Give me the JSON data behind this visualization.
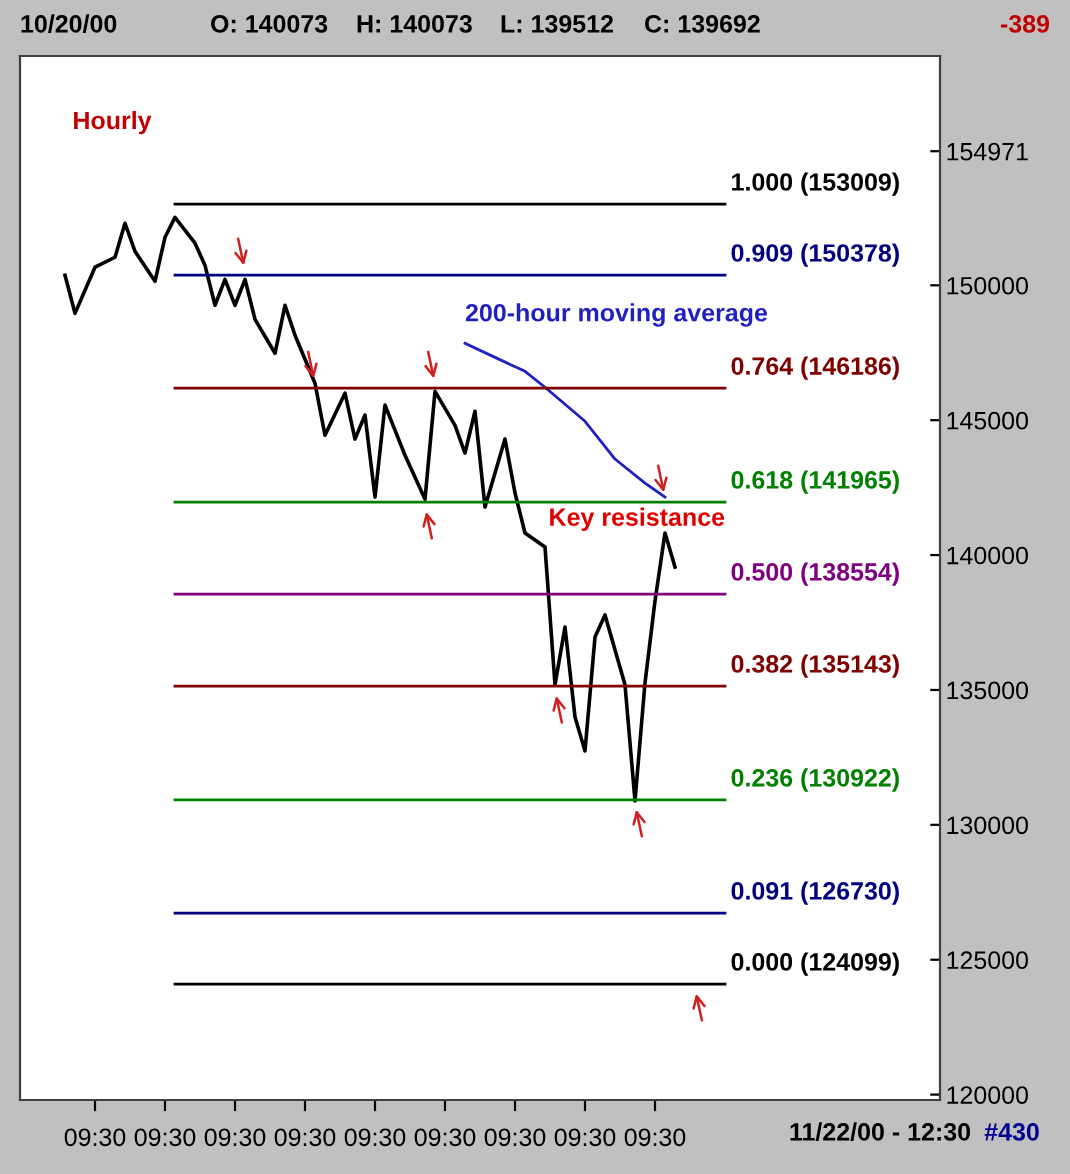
{
  "chart_data": {
    "type": "line",
    "title": "Hourly",
    "annotations": [
      "10/20/00",
      "O: 140073",
      "H: 140073",
      "L: 139512",
      "C: 139692",
      "-389",
      "11/22/00 - 12:30",
      "#430",
      {
        "text": "Key resistance",
        "y": 141965
      }
    ],
    "categories": [
      null,
      null,
      null,
      null,
      null,
      null,
      null,
      "09:30",
      null,
      null,
      null,
      null,
      null,
      null,
      "09:30",
      null,
      null,
      null,
      null,
      null,
      null,
      "09:30",
      null,
      null,
      null,
      null,
      null,
      null,
      "09:30",
      null,
      null,
      null,
      null,
      null,
      null,
      "09:30",
      null,
      null,
      null,
      null,
      null,
      null,
      "09:30",
      null,
      null,
      null,
      null,
      null,
      null,
      "09:30",
      null,
      null,
      null,
      null,
      null,
      null,
      "09:30",
      null,
      null,
      null,
      null,
      null,
      null,
      "09:30",
      null,
      null,
      null,
      null,
      null,
      null,
      null,
      null,
      null,
      null,
      null,
      null,
      null,
      null,
      null,
      null,
      null,
      null,
      null,
      null,
      null,
      null,
      null,
      null,
      null,
      null,
      null,
      null
    ],
    "series": [
      {
        "color": "#000000",
        "values": [
          null,
          null,
          null,
          null,
          150370,
          148960,
          null,
          150670,
          null,
          151040,
          152300,
          151260,
          null,
          150150,
          151780,
          152520,
          null,
          151560,
          150740,
          149260,
          150220,
          149260,
          150220,
          148740,
          null,
          147480,
          149260,
          148150,
          null,
          146370,
          144440,
          null,
          146000,
          144300,
          145190,
          142150,
          145560,
          null,
          143700,
          null,
          142070,
          146070,
          null,
          144810,
          143780,
          145330,
          141780,
          null,
          144300,
          142300,
          140820,
          null,
          140300,
          135190,
          137330,
          134000,
          132740,
          136960,
          137780,
          null,
          135190,
          130890,
          135260,
          138300,
          140820,
          139560,
          null,
          null,
          null,
          null,
          null,
          null,
          null,
          null,
          null,
          null,
          null,
          null,
          null,
          null,
          null,
          null,
          null,
          null,
          null,
          null,
          null,
          null,
          null,
          null,
          null,
          null
        ]
      },
      {
        "name": "200-hour moving average",
        "color": "#2020c0",
        "values": [
          null,
          null,
          null,
          null,
          null,
          null,
          null,
          null,
          null,
          null,
          null,
          null,
          null,
          null,
          null,
          null,
          null,
          null,
          null,
          null,
          null,
          null,
          null,
          null,
          null,
          null,
          null,
          null,
          null,
          null,
          null,
          null,
          null,
          null,
          null,
          null,
          null,
          null,
          null,
          null,
          null,
          null,
          null,
          null,
          147850,
          null,
          null,
          null,
          null,
          null,
          146810,
          null,
          146220,
          null,
          null,
          null,
          144960,
          null,
          null,
          143560,
          null,
          null,
          142670,
          null,
          142150,
          null,
          null,
          null,
          null,
          null,
          null,
          null,
          null,
          null,
          null,
          null,
          null,
          null,
          null,
          null,
          null,
          null,
          null,
          null,
          null,
          null,
          null,
          null,
          null,
          null,
          null,
          null
        ]
      },
      {
        "name": "1.000 (153009)",
        "color": "#000000",
        "values": [
          null,
          null,
          null,
          null,
          null,
          null,
          null,
          null,
          null,
          null,
          null,
          null,
          null,
          null,
          null,
          153009,
          null,
          null,
          null,
          null,
          null,
          null,
          null,
          null,
          null,
          null,
          null,
          null,
          null,
          null,
          null,
          null,
          null,
          null,
          null,
          null,
          null,
          null,
          null,
          null,
          null,
          null,
          null,
          null,
          null,
          null,
          null,
          null,
          null,
          null,
          null,
          null,
          null,
          null,
          null,
          null,
          null,
          null,
          null,
          null,
          null,
          null,
          null,
          null,
          null,
          null,
          null,
          null,
          null,
          null,
          153009,
          null,
          null,
          null,
          null,
          null,
          null,
          null,
          null,
          null,
          null,
          null,
          null,
          null,
          null,
          null,
          null,
          null,
          null,
          null,
          null,
          null
        ]
      },
      {
        "name": "0.909 (150378)",
        "color": "#000080",
        "values": [
          null,
          null,
          null,
          null,
          null,
          null,
          null,
          null,
          null,
          null,
          null,
          null,
          null,
          null,
          null,
          150378,
          null,
          null,
          null,
          null,
          null,
          null,
          null,
          null,
          null,
          null,
          null,
          null,
          null,
          null,
          null,
          null,
          null,
          null,
          null,
          null,
          null,
          null,
          null,
          null,
          null,
          null,
          null,
          null,
          null,
          null,
          null,
          null,
          null,
          null,
          null,
          null,
          null,
          null,
          null,
          null,
          null,
          null,
          null,
          null,
          null,
          null,
          null,
          null,
          null,
          null,
          null,
          null,
          null,
          null,
          150378,
          null,
          null,
          null,
          null,
          null,
          null,
          null,
          null,
          null,
          null,
          null,
          null,
          null,
          null,
          null,
          null,
          null,
          null,
          null,
          null,
          null
        ]
      },
      {
        "name": "0.764 (146186)",
        "color": "#800000",
        "values": [
          null,
          null,
          null,
          null,
          null,
          null,
          null,
          null,
          null,
          null,
          null,
          null,
          null,
          null,
          null,
          146186,
          null,
          null,
          null,
          null,
          null,
          null,
          null,
          null,
          null,
          null,
          null,
          null,
          null,
          null,
          null,
          null,
          null,
          null,
          null,
          null,
          null,
          null,
          null,
          null,
          null,
          null,
          null,
          null,
          null,
          null,
          null,
          null,
          null,
          null,
          null,
          null,
          null,
          null,
          null,
          null,
          null,
          null,
          null,
          null,
          null,
          null,
          null,
          null,
          null,
          null,
          null,
          null,
          null,
          null,
          146186,
          null,
          null,
          null,
          null,
          null,
          null,
          null,
          null,
          null,
          null,
          null,
          null,
          null,
          null,
          null,
          null,
          null,
          null,
          null,
          null,
          null
        ]
      },
      {
        "name": "0.618 (141965)",
        "color": "#008000",
        "values": [
          null,
          null,
          null,
          null,
          null,
          null,
          null,
          null,
          null,
          null,
          null,
          null,
          null,
          null,
          null,
          141965,
          null,
          null,
          null,
          null,
          null,
          null,
          null,
          null,
          null,
          null,
          null,
          null,
          null,
          null,
          null,
          null,
          null,
          null,
          null,
          null,
          null,
          null,
          null,
          null,
          null,
          null,
          null,
          null,
          null,
          null,
          null,
          null,
          null,
          null,
          null,
          null,
          null,
          null,
          null,
          null,
          null,
          null,
          null,
          null,
          null,
          null,
          null,
          null,
          null,
          null,
          null,
          null,
          null,
          null,
          141965,
          null,
          null,
          null,
          null,
          null,
          null,
          null,
          null,
          null,
          null,
          null,
          null,
          null,
          null,
          null,
          null,
          null,
          null,
          null,
          null,
          null
        ]
      },
      {
        "name": "0.500 (138554)",
        "color": "#800080",
        "values": [
          null,
          null,
          null,
          null,
          null,
          null,
          null,
          null,
          null,
          null,
          null,
          null,
          null,
          null,
          null,
          138554,
          null,
          null,
          null,
          null,
          null,
          null,
          null,
          null,
          null,
          null,
          null,
          null,
          null,
          null,
          null,
          null,
          null,
          null,
          null,
          null,
          null,
          null,
          null,
          null,
          null,
          null,
          null,
          null,
          null,
          null,
          null,
          null,
          null,
          null,
          null,
          null,
          null,
          null,
          null,
          null,
          null,
          null,
          null,
          null,
          null,
          null,
          null,
          null,
          null,
          null,
          null,
          null,
          null,
          null,
          138554,
          null,
          null,
          null,
          null,
          null,
          null,
          null,
          null,
          null,
          null,
          null,
          null,
          null,
          null,
          null,
          null,
          null,
          null,
          null,
          null,
          null
        ]
      },
      {
        "name": "0.382 (135143)",
        "color": "#800000",
        "values": [
          null,
          null,
          null,
          null,
          null,
          null,
          null,
          null,
          null,
          null,
          null,
          null,
          null,
          null,
          null,
          135143,
          null,
          null,
          null,
          null,
          null,
          null,
          null,
          null,
          null,
          null,
          null,
          null,
          null,
          null,
          null,
          null,
          null,
          null,
          null,
          null,
          null,
          null,
          null,
          null,
          null,
          null,
          null,
          null,
          null,
          null,
          null,
          null,
          null,
          null,
          null,
          null,
          null,
          null,
          null,
          null,
          null,
          null,
          null,
          null,
          null,
          null,
          null,
          null,
          null,
          null,
          null,
          null,
          null,
          null,
          135143,
          null,
          null,
          null,
          null,
          null,
          null,
          null,
          null,
          null,
          null,
          null,
          null,
          null,
          null,
          null,
          null,
          null,
          null,
          null,
          null,
          null
        ]
      },
      {
        "name": "0.236 (130922)",
        "color": "#008000",
        "values": [
          null,
          null,
          null,
          null,
          null,
          null,
          null,
          null,
          null,
          null,
          null,
          null,
          null,
          null,
          null,
          130922,
          null,
          null,
          null,
          null,
          null,
          null,
          null,
          null,
          null,
          null,
          null,
          null,
          null,
          null,
          null,
          null,
          null,
          null,
          null,
          null,
          null,
          null,
          null,
          null,
          null,
          null,
          null,
          null,
          null,
          null,
          null,
          null,
          null,
          null,
          null,
          null,
          null,
          null,
          null,
          null,
          null,
          null,
          null,
          null,
          null,
          null,
          null,
          null,
          null,
          null,
          null,
          null,
          null,
          null,
          130922,
          null,
          null,
          null,
          null,
          null,
          null,
          null,
          null,
          null,
          null,
          null,
          null,
          null,
          null,
          null,
          null,
          null,
          null,
          null,
          null,
          null
        ]
      },
      {
        "name": "0.091 (126730)",
        "color": "#000080",
        "values": [
          null,
          null,
          null,
          null,
          null,
          null,
          null,
          null,
          null,
          null,
          null,
          null,
          null,
          null,
          null,
          126730,
          null,
          null,
          null,
          null,
          null,
          null,
          null,
          null,
          null,
          null,
          null,
          null,
          null,
          null,
          null,
          null,
          null,
          null,
          null,
          null,
          null,
          null,
          null,
          null,
          null,
          null,
          null,
          null,
          null,
          null,
          null,
          null,
          null,
          null,
          null,
          null,
          null,
          null,
          null,
          null,
          null,
          null,
          null,
          null,
          null,
          null,
          null,
          null,
          null,
          null,
          null,
          null,
          null,
          null,
          126730,
          null,
          null,
          null,
          null,
          null,
          null,
          null,
          null,
          null,
          null,
          null,
          null,
          null,
          null,
          null,
          null,
          null,
          null,
          null,
          null,
          null
        ]
      },
      {
        "name": "0.000 (124099)",
        "color": "#000000",
        "values": [
          null,
          null,
          null,
          null,
          null,
          null,
          null,
          null,
          null,
          null,
          null,
          null,
          null,
          null,
          null,
          124099,
          null,
          null,
          null,
          null,
          null,
          null,
          null,
          null,
          null,
          null,
          null,
          null,
          null,
          null,
          null,
          null,
          null,
          null,
          null,
          null,
          null,
          null,
          null,
          null,
          null,
          null,
          null,
          null,
          null,
          null,
          null,
          null,
          null,
          null,
          null,
          null,
          null,
          null,
          null,
          null,
          null,
          null,
          null,
          null,
          null,
          null,
          null,
          null,
          null,
          null,
          null,
          null,
          null,
          null,
          124099,
          null,
          null,
          null,
          null,
          null,
          null,
          null,
          null,
          null,
          null,
          null,
          null,
          null,
          null,
          null,
          null,
          null,
          null,
          null,
          null,
          null
        ]
      }
    ],
    "ylim": [
      119800,
      158500
    ],
    "yticks": [
      120000,
      125000,
      130000,
      135000,
      140000,
      145000,
      150000,
      154971
    ],
    "grid": false,
    "line_style": "solid"
  }
}
